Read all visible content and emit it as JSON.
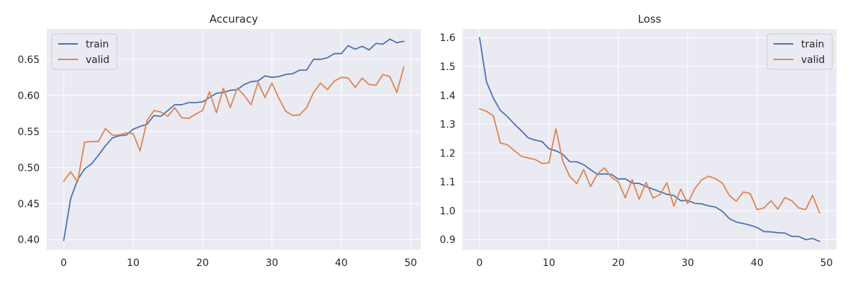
{
  "colors": {
    "background": "#eaeaf2",
    "grid": "#ffffff",
    "train": "#4c72b0",
    "valid": "#dd8452"
  },
  "chart_data": [
    {
      "type": "line",
      "title": "Accuracy",
      "xlabel": "",
      "ylabel": "",
      "xlim": [
        -2.45,
        51.45
      ],
      "ylim": [
        0.386,
        0.692
      ],
      "xticks": [
        0,
        10,
        20,
        30,
        40,
        50
      ],
      "yticks": [
        0.4,
        0.45,
        0.5,
        0.55,
        0.6,
        0.65
      ],
      "ytick_labels": [
        "0.40",
        "0.45",
        "0.50",
        "0.55",
        "0.60",
        "0.65"
      ],
      "grid": true,
      "legend_position": "top-left",
      "series": [
        {
          "name": "train",
          "values": [
            0.399,
            0.457,
            0.483,
            0.498,
            0.505,
            0.517,
            0.53,
            0.541,
            0.544,
            0.545,
            0.553,
            0.557,
            0.56,
            0.572,
            0.571,
            0.579,
            0.587,
            0.587,
            0.59,
            0.59,
            0.591,
            0.597,
            0.603,
            0.604,
            0.607,
            0.608,
            0.615,
            0.619,
            0.62,
            0.627,
            0.625,
            0.626,
            0.629,
            0.63,
            0.635,
            0.635,
            0.65,
            0.65,
            0.652,
            0.658,
            0.658,
            0.669,
            0.664,
            0.668,
            0.663,
            0.672,
            0.671,
            0.678,
            0.673,
            0.675
          ]
        },
        {
          "name": "valid",
          "values": [
            0.481,
            0.494,
            0.48,
            0.535,
            0.536,
            0.536,
            0.554,
            0.545,
            0.545,
            0.548,
            0.547,
            0.523,
            0.565,
            0.579,
            0.577,
            0.571,
            0.583,
            0.569,
            0.568,
            0.574,
            0.579,
            0.605,
            0.576,
            0.61,
            0.583,
            0.61,
            0.6,
            0.587,
            0.618,
            0.597,
            0.617,
            0.596,
            0.578,
            0.572,
            0.573,
            0.583,
            0.604,
            0.617,
            0.608,
            0.62,
            0.625,
            0.624,
            0.611,
            0.624,
            0.615,
            0.614,
            0.629,
            0.626,
            0.604,
            0.639
          ]
        }
      ]
    },
    {
      "type": "line",
      "title": "Loss",
      "xlabel": "",
      "ylabel": "",
      "xlim": [
        -2.45,
        51.45
      ],
      "ylim": [
        0.865,
        1.63
      ],
      "xticks": [
        0,
        10,
        20,
        30,
        40,
        50
      ],
      "yticks": [
        0.9,
        1.0,
        1.1,
        1.2,
        1.3,
        1.4,
        1.5,
        1.6
      ],
      "ytick_labels": [
        "0.9",
        "1.0",
        "1.1",
        "1.2",
        "1.3",
        "1.4",
        "1.5",
        "1.6"
      ],
      "grid": true,
      "legend_position": "top-right",
      "series": [
        {
          "name": "train",
          "values": [
            1.6,
            1.447,
            1.39,
            1.348,
            1.327,
            1.301,
            1.278,
            1.253,
            1.245,
            1.24,
            1.215,
            1.208,
            1.196,
            1.17,
            1.17,
            1.16,
            1.142,
            1.126,
            1.128,
            1.126,
            1.11,
            1.111,
            1.096,
            1.095,
            1.084,
            1.075,
            1.066,
            1.057,
            1.053,
            1.035,
            1.036,
            1.026,
            1.024,
            1.017,
            1.013,
            0.998,
            0.973,
            0.961,
            0.956,
            0.95,
            0.942,
            0.928,
            0.927,
            0.924,
            0.923,
            0.911,
            0.911,
            0.9,
            0.904,
            0.894
          ]
        },
        {
          "name": "valid",
          "values": [
            1.354,
            1.345,
            1.329,
            1.235,
            1.229,
            1.209,
            1.189,
            1.183,
            1.178,
            1.164,
            1.166,
            1.284,
            1.172,
            1.119,
            1.094,
            1.143,
            1.084,
            1.128,
            1.149,
            1.116,
            1.101,
            1.045,
            1.108,
            1.04,
            1.099,
            1.044,
            1.056,
            1.097,
            1.016,
            1.075,
            1.025,
            1.076,
            1.107,
            1.12,
            1.111,
            1.096,
            1.053,
            1.033,
            1.065,
            1.06,
            1.004,
            1.01,
            1.035,
            1.006,
            1.046,
            1.035,
            1.01,
            1.004,
            1.054,
            0.993
          ]
        }
      ]
    }
  ]
}
